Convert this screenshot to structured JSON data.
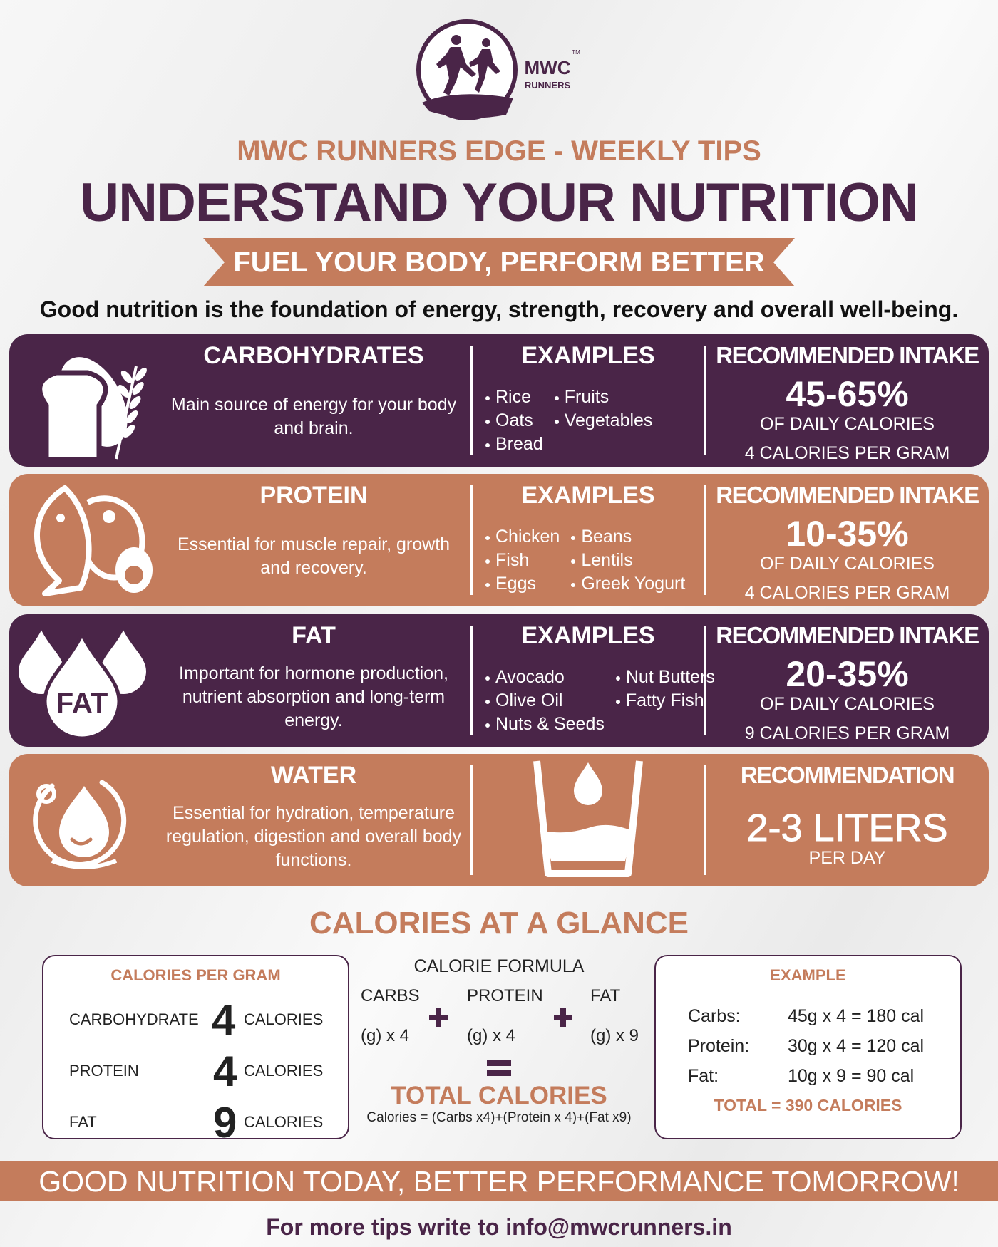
{
  "logo": {
    "name": "MWC",
    "sub": "RUNNERS",
    "mark": "TM"
  },
  "header": {
    "kicker": "MWC RUNNERS EDGE - WEEKLY TIPS",
    "title": "UNDERSTAND YOUR NUTRITION",
    "ribbon": "FUEL YOUR BODY, PERFORM BETTER",
    "intro": "Good nutrition is the foundation of energy, strength, recovery and overall well-being."
  },
  "nutrients": [
    {
      "name": "CARBOHYDRATES",
      "description": "Main source of energy for your body and brain.",
      "examples_heading": "EXAMPLES",
      "examples": [
        [
          "Rice",
          "Oats",
          "Bread"
        ],
        [
          "Fruits",
          "Vegetables"
        ]
      ],
      "intake_heading": "RECOMMENDED INTAKE",
      "intake": "45-65%",
      "intake_unit": "OF DAILY CALORIES",
      "per_gram": "4 CALORIES PER GRAM"
    },
    {
      "name": "PROTEIN",
      "description": "Essential for muscle repair, growth and recovery.",
      "examples_heading": "EXAMPLES",
      "examples": [
        [
          "Chicken",
          "Fish",
          "Eggs"
        ],
        [
          "Beans",
          "Lentils",
          "Greek Yogurt"
        ]
      ],
      "intake_heading": "RECOMMENDED INTAKE",
      "intake": "10-35%",
      "intake_unit": "OF DAILY CALORIES",
      "per_gram": "4 CALORIES PER GRAM"
    },
    {
      "name": "FAT",
      "description": "Important for hormone production, nutrient absorption and long-term energy.",
      "examples_heading": "EXAMPLES",
      "examples": [
        [
          "Avocado",
          "Olive Oil",
          "Nuts & Seeds"
        ],
        [
          "Nut Butters",
          "Fatty Fish"
        ]
      ],
      "intake_heading": "RECOMMENDED INTAKE",
      "intake": "20-35%",
      "intake_unit": "OF DAILY CALORIES",
      "per_gram": "9 CALORIES PER GRAM",
      "icon_label": "FAT"
    }
  ],
  "water": {
    "name": "WATER",
    "description": "Essential for hydration, temperature regulation, digestion and overall body functions.",
    "heading": "RECOMMENDATION",
    "amount": "2-3 LITERS",
    "unit": "PER DAY"
  },
  "glance": {
    "title": "CALORIES AT A GLANCE",
    "per_gram": {
      "heading": "CALORIES PER GRAM",
      "rows": [
        {
          "label": "CARBOHYDRATE",
          "value": 4,
          "unit": "CALORIES"
        },
        {
          "label": "PROTEIN",
          "value": 4,
          "unit": "CALORIES"
        },
        {
          "label": "FAT",
          "value": 9,
          "unit": "CALORIES"
        }
      ]
    },
    "formula": {
      "heading": "CALORIE FORMULA",
      "terms": [
        {
          "name": "CARBS",
          "multiplier": "(g) x 4"
        },
        {
          "name": "PROTEIN",
          "multiplier": "(g) x 4"
        },
        {
          "name": "FAT",
          "multiplier": "(g) x 9"
        }
      ],
      "result": "TOTAL CALORIES",
      "equation": "Calories = (Carbs x4)+(Protein x 4)+(Fat x9)"
    },
    "example": {
      "heading": "EXAMPLE",
      "rows": [
        {
          "label": "Carbs:",
          "calc": "45g x 4 = 180 cal"
        },
        {
          "label": "Protein:",
          "calc": "30g x 4 = 120 cal"
        },
        {
          "label": "Fat:",
          "calc": "10g x 9 = 90 cal"
        }
      ],
      "total": "TOTAL = 390 CALORIES"
    }
  },
  "footer": {
    "banner": "GOOD NUTRITION TODAY, BETTER PERFORMANCE TOMORROW!",
    "contact": "For more tips write to info@mwcrunners.in"
  }
}
